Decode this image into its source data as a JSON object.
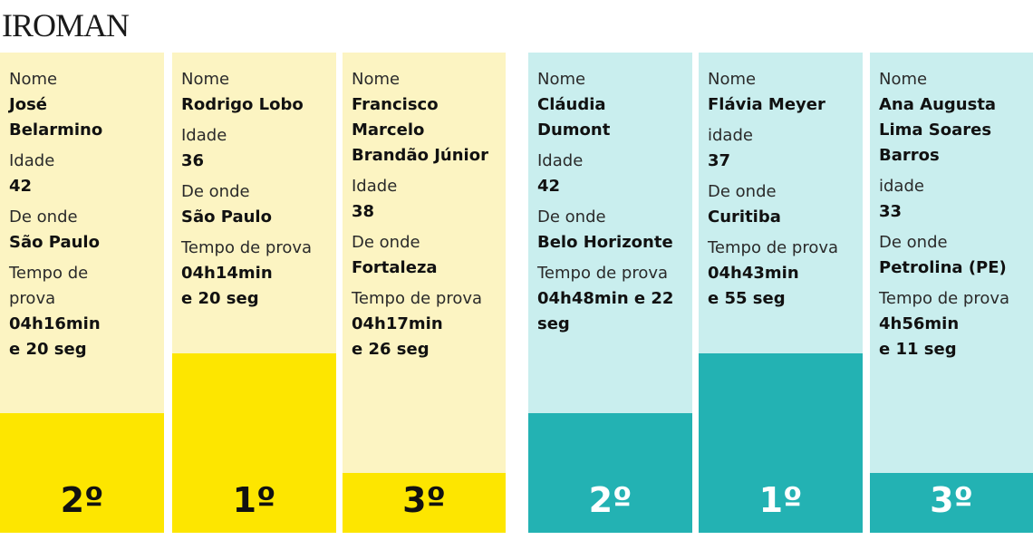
{
  "title": "IROMAN",
  "colors": {
    "men_light": "#fcf4c2",
    "men_dark": "#fde600",
    "women_light": "#c9eeee",
    "women_dark": "#23b2b3"
  },
  "labels": {
    "name": "Nome",
    "age": "Idade",
    "age_lower": "idade",
    "from": "De onde",
    "time": "Tempo de prova"
  },
  "men": [
    {
      "name": "José\nBelarmino",
      "age": "42",
      "from": "São Paulo",
      "time_label": "Tempo de\nprova",
      "time": "04h16min\ne 20 seg",
      "place": "2º",
      "podium_level": 2
    },
    {
      "name": "Rodrigo Lobo",
      "age": "36",
      "from": "São Paulo",
      "time_label": "Tempo de prova",
      "time": "04h14min\ne 20 seg",
      "place": "1º",
      "podium_level": 1
    },
    {
      "name": "Francisco\nMarcelo\nBrandão Júnior",
      "age": "38",
      "from": "Fortaleza",
      "time_label": "Tempo de prova",
      "time": "04h17min\ne 26 seg",
      "place": "3º",
      "podium_level": 3
    }
  ],
  "women": [
    {
      "name": "Cláudia\nDumont",
      "age_label": "Idade",
      "age": "42",
      "from": "Belo Horizonte",
      "time_label": "Tempo de prova",
      "time": "04h48min e 22\nseg",
      "place": "2º",
      "podium_level": 2
    },
    {
      "name": "Flávia Meyer",
      "age_label": "idade",
      "age": "37",
      "from": "Curitiba",
      "time_label": "Tempo de prova",
      "time": "04h43min\ne 55 seg",
      "place": "1º",
      "podium_level": 1
    },
    {
      "name": "Ana Augusta\nLima Soares\nBarros",
      "age_label": "idade",
      "age": "33",
      "from": "Petrolina (PE)",
      "time_label": "Tempo de prova",
      "time": "4h56min\ne 11 seg",
      "place": "3º",
      "podium_level": 3
    }
  ]
}
